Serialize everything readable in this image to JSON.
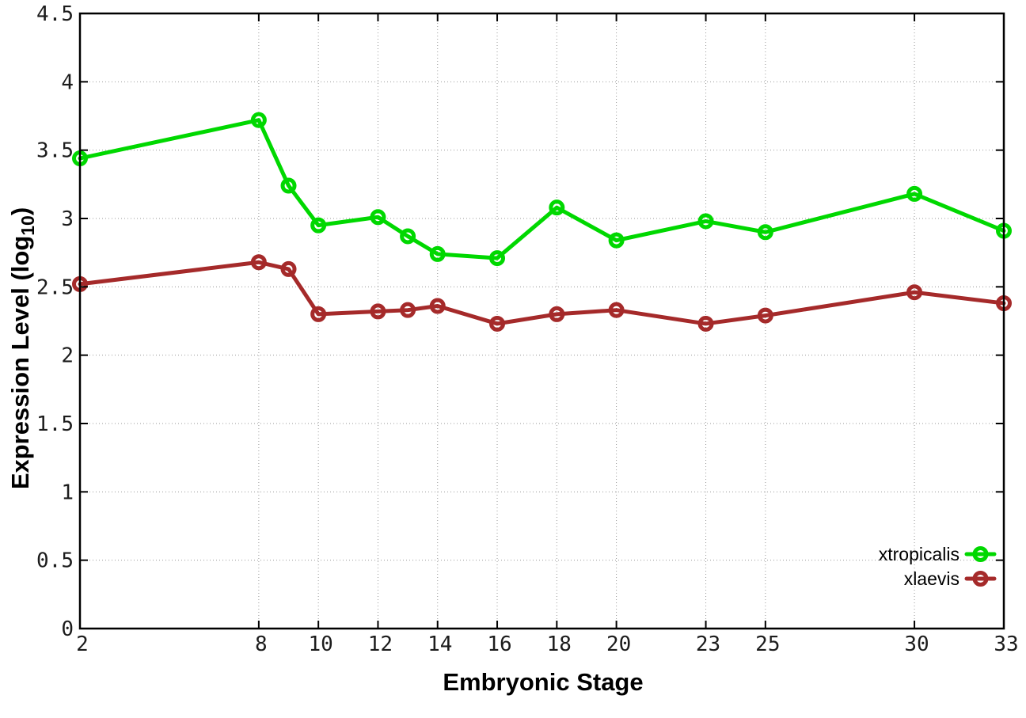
{
  "chart_data": {
    "type": "line",
    "title": "",
    "xlabel": "Embryonic Stage",
    "ylabel": "Expression Level (log10)",
    "ylabel_prefix": "Expression Level (log",
    "ylabel_subscript": "10",
    "ylabel_suffix": ")",
    "x": [
      2,
      8,
      9,
      10,
      12,
      13,
      14,
      16,
      18,
      20,
      23,
      25,
      30,
      33
    ],
    "series": [
      {
        "name": "xtropicalis",
        "color": "#00d800",
        "values": [
          3.44,
          3.72,
          3.24,
          2.95,
          3.01,
          2.87,
          2.74,
          2.71,
          3.08,
          2.84,
          2.98,
          2.9,
          3.18,
          2.91
        ]
      },
      {
        "name": "xlaevis",
        "color": "#a52a2a",
        "values": [
          2.52,
          2.68,
          2.63,
          2.3,
          2.32,
          2.33,
          2.36,
          2.23,
          2.3,
          2.33,
          2.23,
          2.29,
          2.46,
          2.38
        ]
      }
    ],
    "xlim": [
      2,
      33
    ],
    "ylim": [
      0,
      4.5
    ],
    "xticks": [
      2,
      8,
      10,
      12,
      14,
      16,
      18,
      20,
      23,
      25,
      30,
      33
    ],
    "xtick_labels": [
      "2",
      "8",
      "10",
      "12",
      "14",
      "16",
      "18",
      "20",
      "23",
      "25",
      "30",
      "33"
    ],
    "yticks": [
      0,
      0.5,
      1,
      1.5,
      2,
      2.5,
      3,
      3.5,
      4,
      4.5
    ],
    "ytick_labels": [
      "0",
      "0.5",
      "1",
      "1.5",
      "2",
      "2.5",
      "3",
      "3.5",
      "4",
      "4.5"
    ],
    "grid": true,
    "marker": "open-circle",
    "legend_position": "inside-bottom-right",
    "background_color": "#ffffff",
    "border_color": "#000000",
    "grid_color": "#9a9a9a"
  }
}
